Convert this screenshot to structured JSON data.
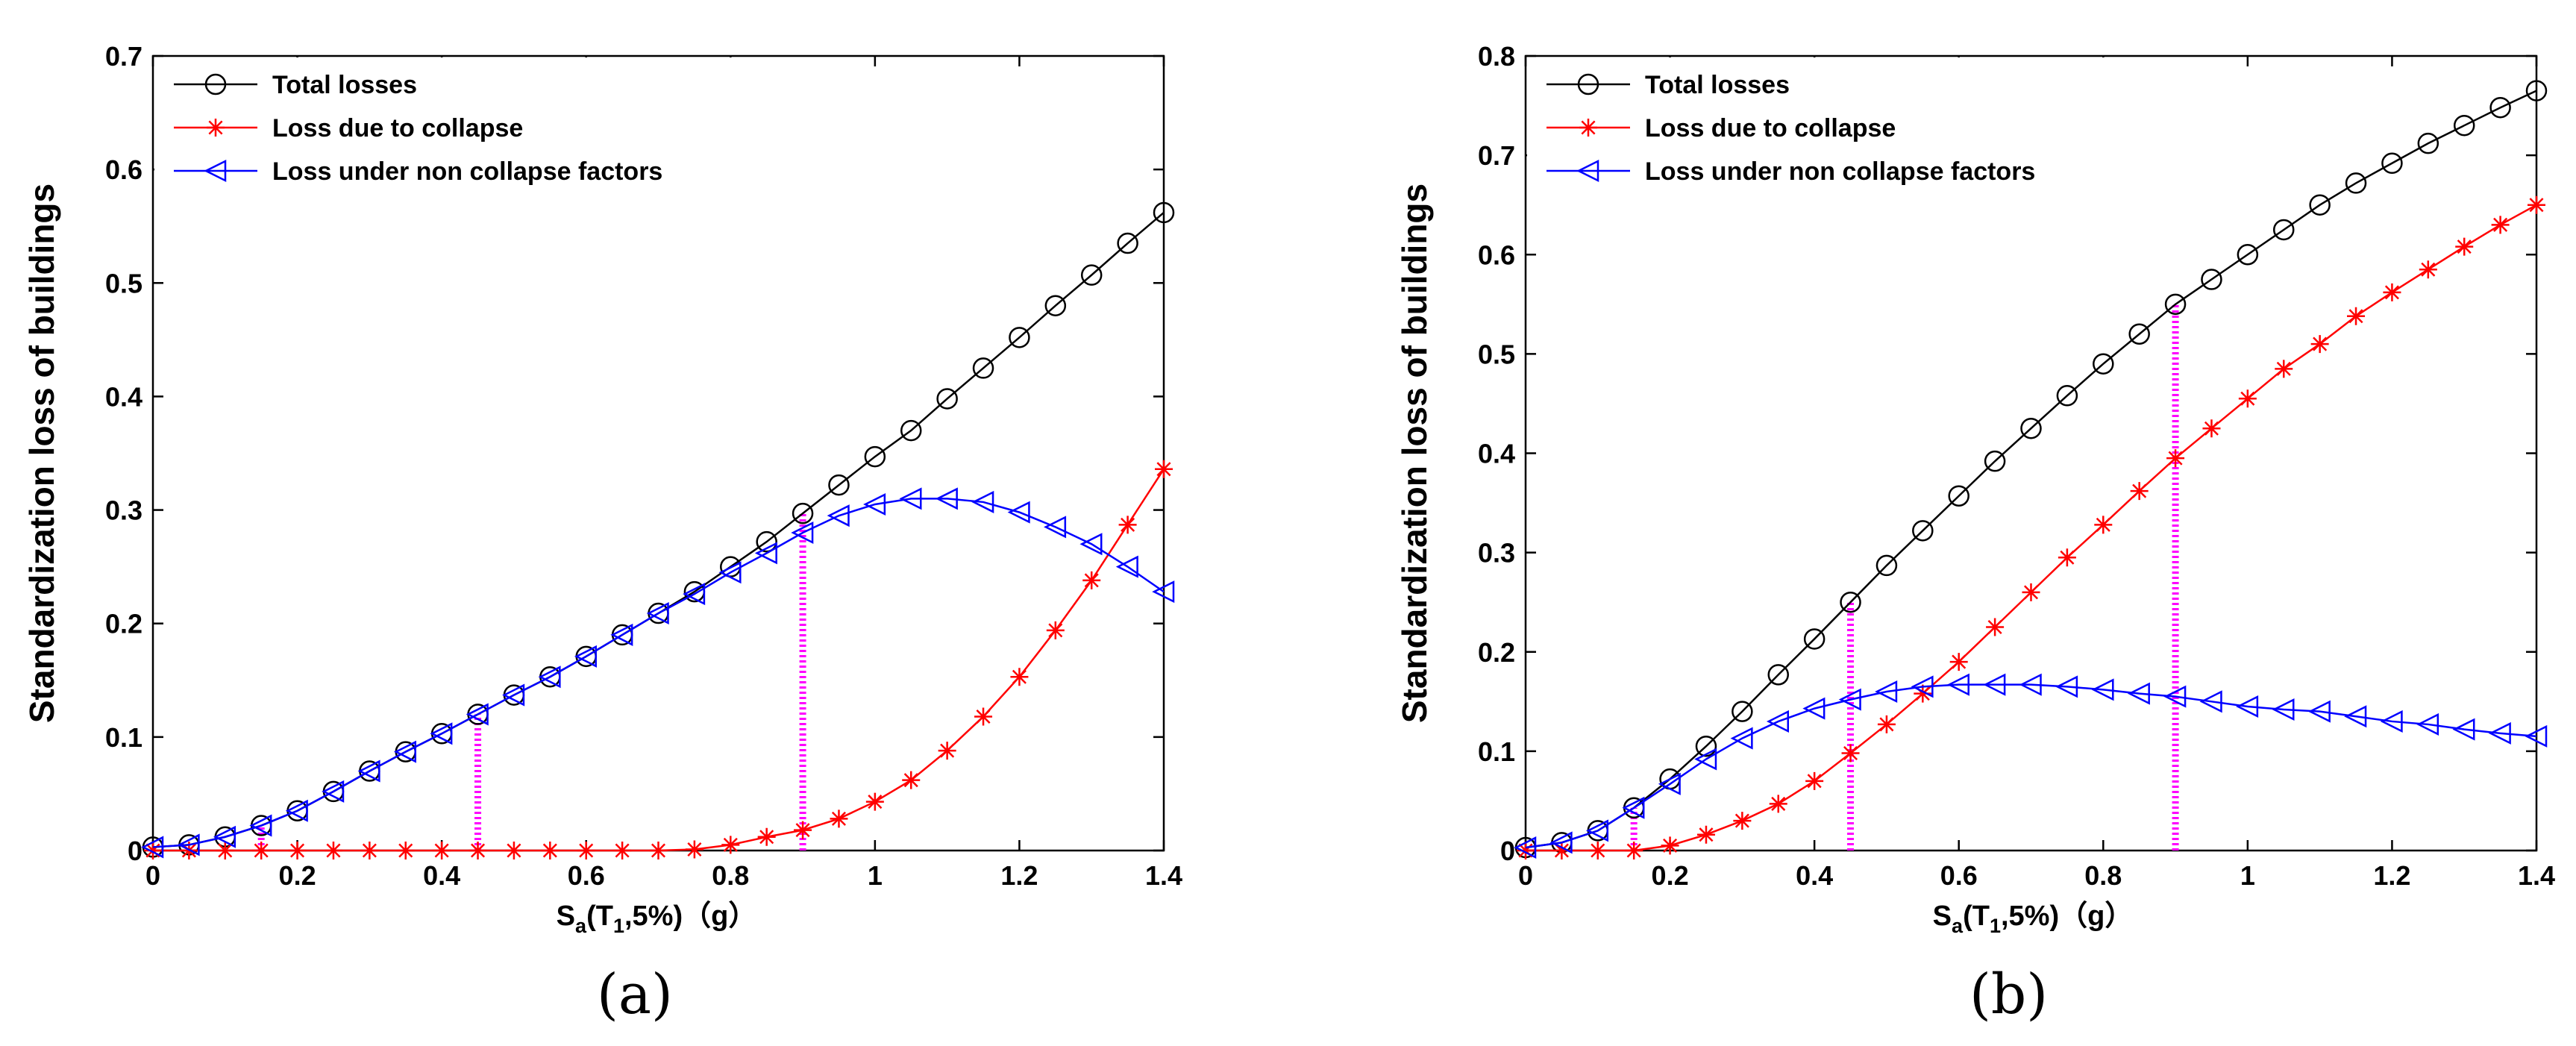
{
  "panels": [
    "(a)",
    "(b)"
  ],
  "colors": {
    "total": "#000000",
    "collapse": "#ff0000",
    "noncollapse": "#0000ff",
    "marker_line": "#ff00ff"
  },
  "chart_data": [
    {
      "type": "line",
      "panel": "(a)",
      "title": "",
      "xlabel": "Sa(T1,5%)(g)",
      "xlabel_parts": {
        "main": "S",
        "sub1": "a",
        "mid": "(T",
        "sub2": "1",
        "tail": ",5%)（g）"
      },
      "ylabel": "Standardization loss of buildings",
      "xlim": [
        0,
        1.4
      ],
      "ylim": [
        0,
        0.7
      ],
      "xticks": [
        0,
        0.2,
        0.4,
        0.6,
        0.8,
        1,
        1.2,
        1.4
      ],
      "xtick_labels": [
        "0",
        "0.2",
        "0.4",
        "0.6",
        "0.8",
        "1",
        "1.2",
        "1.4"
      ],
      "yticks": [
        0,
        0.1,
        0.2,
        0.3,
        0.4,
        0.5,
        0.6,
        0.7
      ],
      "ytick_labels": [
        "0",
        "0.1",
        "0.2",
        "0.3",
        "0.4",
        "0.5",
        "0.6",
        "0.7"
      ],
      "legend_position": "top-left",
      "x": [
        0,
        0.05,
        0.1,
        0.15,
        0.2,
        0.25,
        0.3,
        0.35,
        0.4,
        0.45,
        0.5,
        0.55,
        0.6,
        0.65,
        0.7,
        0.75,
        0.8,
        0.85,
        0.9,
        0.95,
        1.0,
        1.05,
        1.1,
        1.15,
        1.2,
        1.25,
        1.3,
        1.35,
        1.4
      ],
      "series": [
        {
          "name": "Total losses",
          "key": "total",
          "marker": "circle",
          "values": [
            0.003,
            0.005,
            0.012,
            0.022,
            0.035,
            0.052,
            0.07,
            0.087,
            0.103,
            0.12,
            0.137,
            0.153,
            0.171,
            0.19,
            0.209,
            0.228,
            0.25,
            0.272,
            0.297,
            0.322,
            0.347,
            0.37,
            0.398,
            0.425,
            0.452,
            0.48,
            0.507,
            0.535,
            0.562
          ]
        },
        {
          "name": "Loss due to collapse",
          "key": "collapse",
          "marker": "star",
          "values": [
            0,
            0,
            0,
            0,
            0,
            0,
            0,
            0,
            0,
            0,
            0,
            0,
            0,
            0,
            0,
            0.001,
            0.005,
            0.012,
            0.018,
            0.028,
            0.043,
            0.062,
            0.088,
            0.118,
            0.153,
            0.194,
            0.238,
            0.287,
            0.336
          ]
        },
        {
          "name": "Loss under non collapse factors",
          "key": "noncollapse",
          "marker": "triangle-left",
          "values": [
            0.003,
            0.005,
            0.012,
            0.022,
            0.035,
            0.052,
            0.07,
            0.087,
            0.103,
            0.12,
            0.137,
            0.153,
            0.171,
            0.19,
            0.209,
            0.226,
            0.245,
            0.262,
            0.28,
            0.295,
            0.305,
            0.31,
            0.31,
            0.307,
            0.298,
            0.285,
            0.27,
            0.25,
            0.228
          ]
        }
      ],
      "markers_vertical": [
        {
          "x": 0.15,
          "y": 0.022
        },
        {
          "x": 0.45,
          "y": 0.12
        },
        {
          "x": 0.9,
          "y": 0.297
        }
      ]
    },
    {
      "type": "line",
      "panel": "(b)",
      "title": "",
      "xlabel": "Sa(T1,5%)(g)",
      "xlabel_parts": {
        "main": "S",
        "sub1": "a",
        "mid": "(T",
        "sub2": "1",
        "tail": ",5%)（g）"
      },
      "ylabel": "Standardization loss of buildings",
      "xlim": [
        0,
        1.4
      ],
      "ylim": [
        0,
        0.8
      ],
      "xticks": [
        0,
        0.2,
        0.4,
        0.6,
        0.8,
        1,
        1.2,
        1.4
      ],
      "xtick_labels": [
        "0",
        "0.2",
        "0.4",
        "0.6",
        "0.8",
        "1",
        "1.2",
        "1.4"
      ],
      "yticks": [
        0,
        0.1,
        0.2,
        0.3,
        0.4,
        0.5,
        0.6,
        0.7,
        0.8
      ],
      "ytick_labels": [
        "0",
        "0.1",
        "0.2",
        "0.3",
        "0.4",
        "0.5",
        "0.6",
        "0.7",
        "0.8"
      ],
      "legend_position": "top-left",
      "x": [
        0,
        0.05,
        0.1,
        0.15,
        0.2,
        0.25,
        0.3,
        0.35,
        0.4,
        0.45,
        0.5,
        0.55,
        0.6,
        0.65,
        0.7,
        0.75,
        0.8,
        0.85,
        0.9,
        0.95,
        1.0,
        1.05,
        1.1,
        1.15,
        1.2,
        1.25,
        1.3,
        1.35,
        1.4
      ],
      "series": [
        {
          "name": "Total losses",
          "key": "total",
          "marker": "circle",
          "values": [
            0.003,
            0.008,
            0.02,
            0.043,
            0.072,
            0.105,
            0.14,
            0.177,
            0.213,
            0.25,
            0.287,
            0.322,
            0.357,
            0.392,
            0.425,
            0.458,
            0.49,
            0.52,
            0.55,
            0.575,
            0.6,
            0.625,
            0.65,
            0.672,
            0.692,
            0.712,
            0.73,
            0.748,
            0.765
          ]
        },
        {
          "name": "Loss due to collapse",
          "key": "collapse",
          "marker": "star",
          "values": [
            0,
            0,
            0,
            0,
            0.005,
            0.016,
            0.03,
            0.047,
            0.07,
            0.098,
            0.127,
            0.158,
            0.19,
            0.225,
            0.26,
            0.295,
            0.328,
            0.362,
            0.395,
            0.425,
            0.455,
            0.485,
            0.51,
            0.538,
            0.562,
            0.585,
            0.608,
            0.63,
            0.65
          ]
        },
        {
          "name": "Loss under non collapse factors",
          "key": "noncollapse",
          "marker": "triangle-left",
          "values": [
            0.003,
            0.008,
            0.02,
            0.043,
            0.067,
            0.092,
            0.113,
            0.13,
            0.143,
            0.152,
            0.16,
            0.165,
            0.167,
            0.167,
            0.167,
            0.165,
            0.162,
            0.158,
            0.155,
            0.15,
            0.145,
            0.142,
            0.14,
            0.135,
            0.13,
            0.127,
            0.122,
            0.118,
            0.115
          ]
        }
      ],
      "markers_vertical": [
        {
          "x": 0.15,
          "y": 0.043
        },
        {
          "x": 0.45,
          "y": 0.25
        },
        {
          "x": 0.9,
          "y": 0.55
        }
      ]
    }
  ]
}
